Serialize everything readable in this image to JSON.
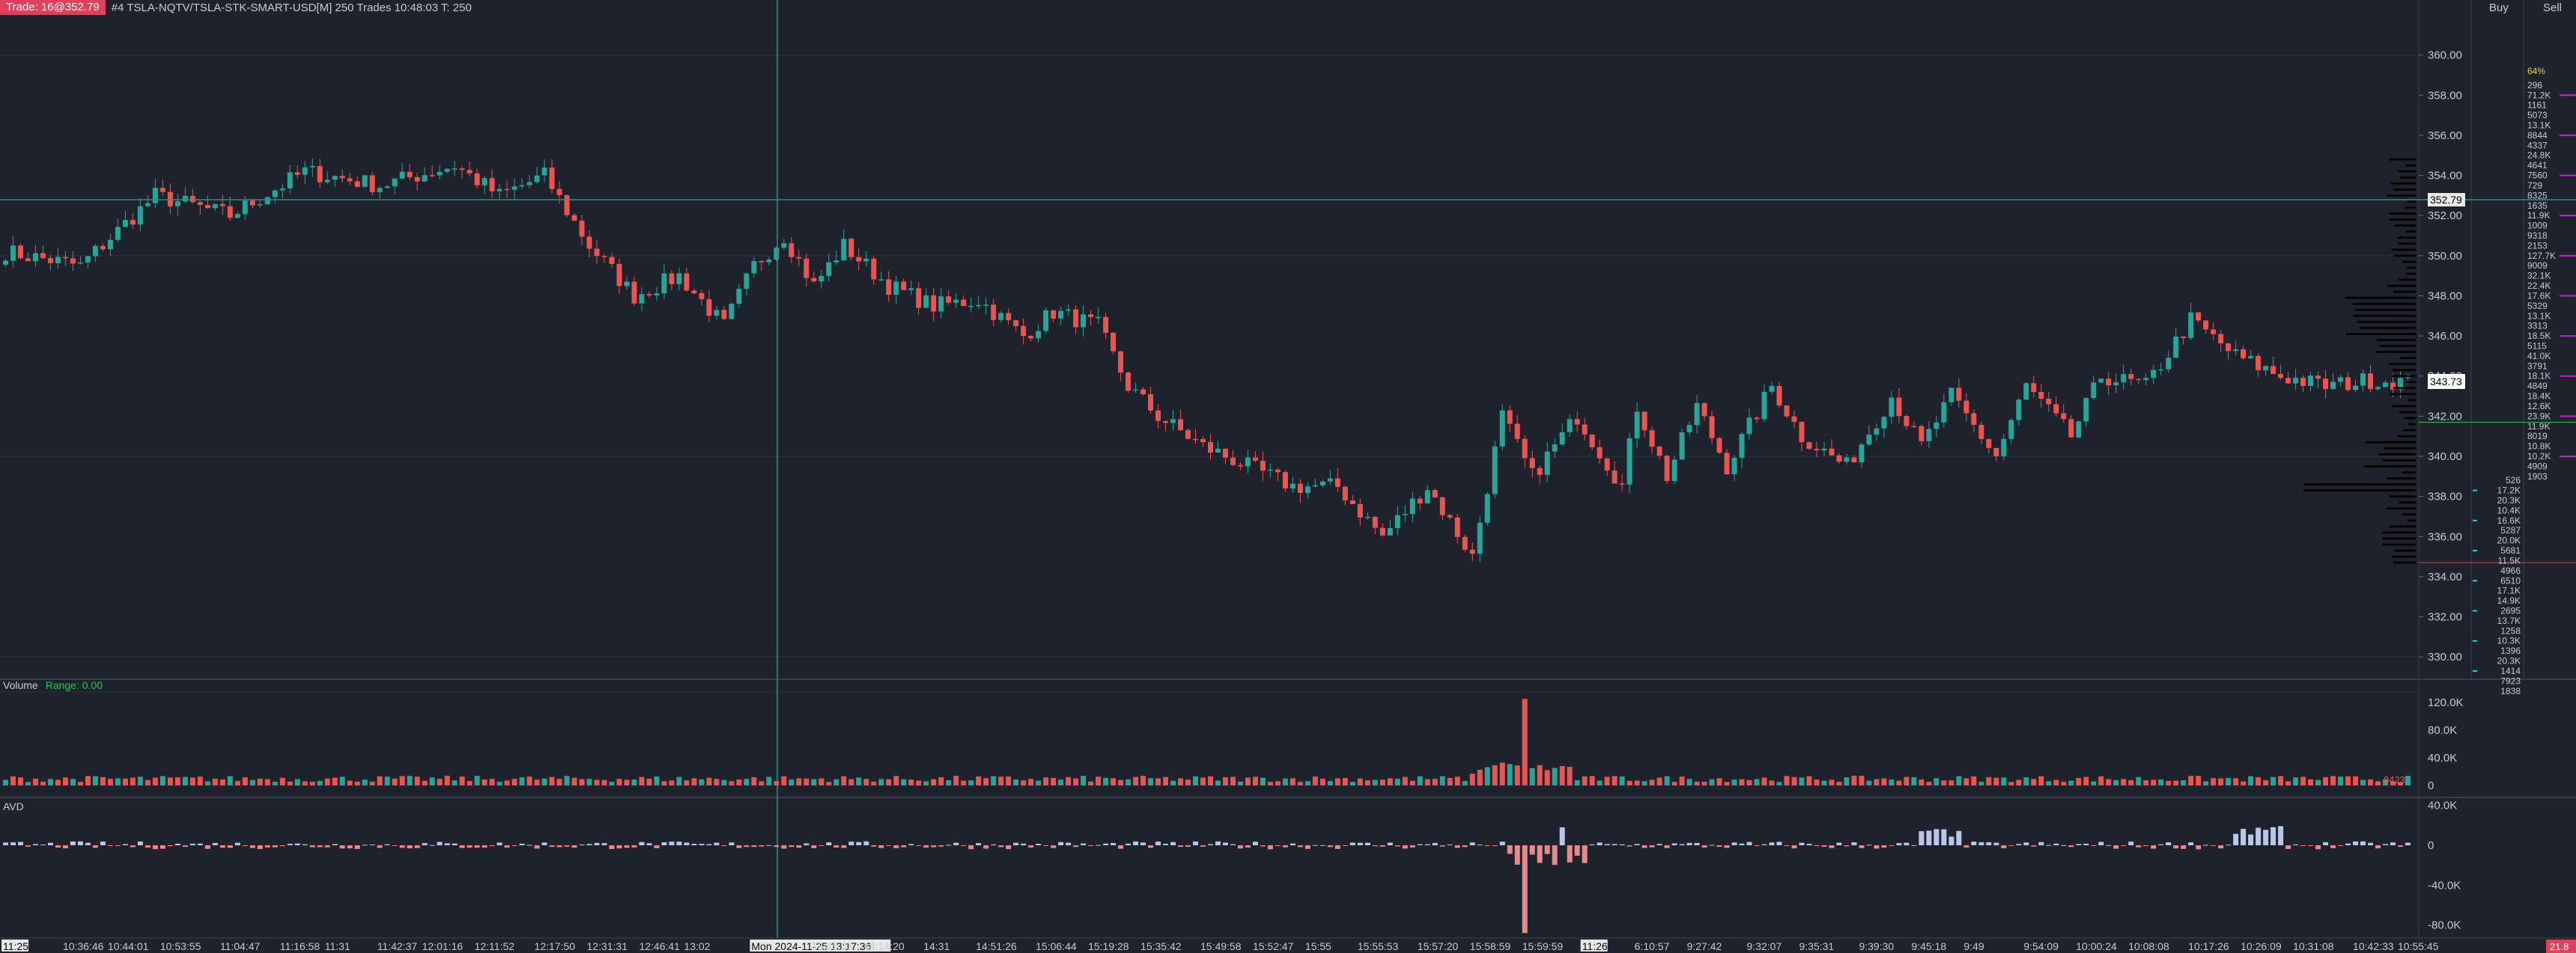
{
  "header": {
    "trade_badge": "Trade: 16@352.79",
    "instrument": "#4 TSLA-NQTV/TSLA-STK-SMART-USD[M]  250 Trades 10:48:03 T: 250"
  },
  "panes": {
    "volume_title": "Volume",
    "volume_range": "Range: 0.00",
    "avd_title": "AVD",
    "buy_label": "Buy",
    "sell_label": "Sell",
    "sell_percent": "64%",
    "last_volume": "8423",
    "corner_value": "21.8"
  },
  "colors": {
    "background": "#1e222d",
    "up": "#26a69a",
    "down": "#ef5350",
    "grid": "#2a2e39",
    "crosshair": "#3a8c8c",
    "avd_pos": "#b9c7ea",
    "avd_neg": "#e88a8a",
    "profile": "#000000",
    "trade_badge": "#e0405a"
  },
  "chart_data": [
    {
      "type": "candlestick",
      "title": "",
      "ylim": [
        329,
        362
      ],
      "y_ticks": [
        "360.00",
        "358.00",
        "356.00",
        "354.00",
        "352.00",
        "350.00",
        "348.00",
        "346.00",
        "344.00",
        "342.00",
        "340.00",
        "338.00",
        "336.00",
        "334.00",
        "332.00",
        "330.00"
      ],
      "y_tick_values": [
        360,
        358,
        356,
        354,
        352,
        350,
        348,
        346,
        344,
        342,
        340,
        338,
        336,
        334,
        332,
        330
      ],
      "last_trade_price": 352.79,
      "last_trade_label": "352.79",
      "current_price": 343.73,
      "current_price_label": "343.73",
      "x_labels": [
        "11:25",
        "10:36:46",
        "10:44:01",
        "10:53:55",
        "11:04:47",
        "11:16:58",
        "11:31",
        "11:42:37",
        "12:01:16",
        "12:11:52",
        "12:17:50",
        "12:31:31",
        "12:46:41",
        "13:02",
        "Mon 2024-11-25  13:17:36",
        "13:46:53",
        "14:14:20",
        "14:31",
        "14:51:26",
        "15:06:44",
        "15:19:28",
        "15:35:42",
        "15:49:58",
        "15:52:47",
        "15:55",
        "15:55:53",
        "15:57:20",
        "15:58:59",
        "15:59:59",
        "11:26",
        "6:10:57",
        "9:27:42",
        "9:32:07",
        "9:35:31",
        "9:39:30",
        "9:45:18",
        "9:49",
        "9:54:09",
        "10:00:24",
        "10:08:08",
        "10:17:26",
        "10:26:09",
        "10:31:08",
        "10:42:33",
        "10:55:45"
      ],
      "x_label_index": [
        0,
        8,
        14,
        21,
        29,
        37,
        43,
        50,
        56,
        63,
        71,
        78,
        85,
        91,
        100,
        108,
        115,
        123,
        130,
        138,
        145,
        152,
        160,
        167,
        174,
        181,
        189,
        196,
        203,
        211,
        218,
        225,
        233,
        240,
        248,
        255,
        262,
        270,
        277,
        284,
        292,
        299,
        306,
        314,
        320
      ],
      "price_path_x": [
        0,
        10,
        20,
        30,
        40,
        50,
        60,
        66,
        72,
        78,
        84,
        90,
        96,
        100,
        104,
        108,
        112,
        118,
        124,
        130,
        136,
        140,
        146,
        150,
        154,
        160,
        166,
        172,
        178,
        184,
        190,
        196,
        200,
        204,
        210,
        216,
        218,
        222,
        226,
        230,
        236,
        240,
        246,
        252,
        256,
        260,
        266,
        270,
        276,
        280,
        286,
        292,
        298,
        304,
        310,
        316,
        322
      ],
      "price_path_y": [
        350.2,
        349.5,
        353.0,
        352.0,
        354.2,
        353.5,
        354.5,
        353.0,
        354.0,
        350.5,
        348.0,
        349.0,
        346.5,
        349.5,
        351.0,
        348.5,
        350.5,
        348.5,
        347.5,
        347.8,
        346.0,
        347.2,
        346.5,
        343.5,
        342.0,
        340.5,
        339.5,
        338.5,
        338.5,
        336.0,
        338.5,
        335.0,
        342.0,
        339.0,
        342.0,
        338.5,
        342.5,
        339.0,
        342.5,
        339.5,
        343.5,
        341.0,
        339.5,
        343.0,
        340.5,
        343.0,
        340.0,
        343.5,
        341.0,
        344.0,
        343.5,
        346.8,
        345.0,
        344.0,
        343.5,
        343.8,
        343.7
      ],
      "volume_profile_label_count": 68
    },
    {
      "type": "bar",
      "title": "Volume",
      "ylim": [
        0,
        135000
      ],
      "y_ticks": [
        "120.0K",
        "80.0K",
        "40.0K",
        "0"
      ],
      "y_tick_values": [
        120000,
        80000,
        40000,
        0
      ],
      "spike_index": 203,
      "spike_value": 125000,
      "last_value": 8423
    },
    {
      "type": "bar",
      "title": "AVD",
      "ylim": [
        -90000,
        45000
      ],
      "y_ticks": [
        "40.0K",
        "0",
        "-40.0K",
        "-80.0K"
      ],
      "y_tick_values": [
        40000,
        0,
        -40000,
        -80000
      ],
      "spike_index": 203,
      "spike_value": -88000
    }
  ],
  "book": {
    "sell_sizes": [
      "296",
      "71.2K",
      "1161",
      "5073",
      "13.1K",
      "8844",
      "4337",
      "24.8K",
      "4641",
      "7560",
      "729",
      "8325",
      "1635",
      "11.9K",
      "1009",
      "9318",
      "2153",
      "127.7K",
      "9009",
      "32.1K",
      "22.4K",
      "17.6K",
      "5329",
      "13.1K",
      "3313",
      "18.5K",
      "5115",
      "41.0K",
      "3791",
      "18.1K",
      "4849",
      "18.4K",
      "12.6K",
      "23.9K",
      "11.9K",
      "8019",
      "10.8K",
      "10.2K",
      "4909",
      "1903"
    ],
    "buy_sizes": [
      "526",
      "17.2K",
      "20.3K",
      "10.4K",
      "16.6K",
      "5287",
      "20.0K",
      "5681",
      "11.5K",
      "4966",
      "6510",
      "17.1K",
      "14.9K",
      "2695",
      "13.7K",
      "1258",
      "10.3K",
      "1396",
      "20.3K",
      "1414",
      "7923",
      "1838"
    ]
  }
}
